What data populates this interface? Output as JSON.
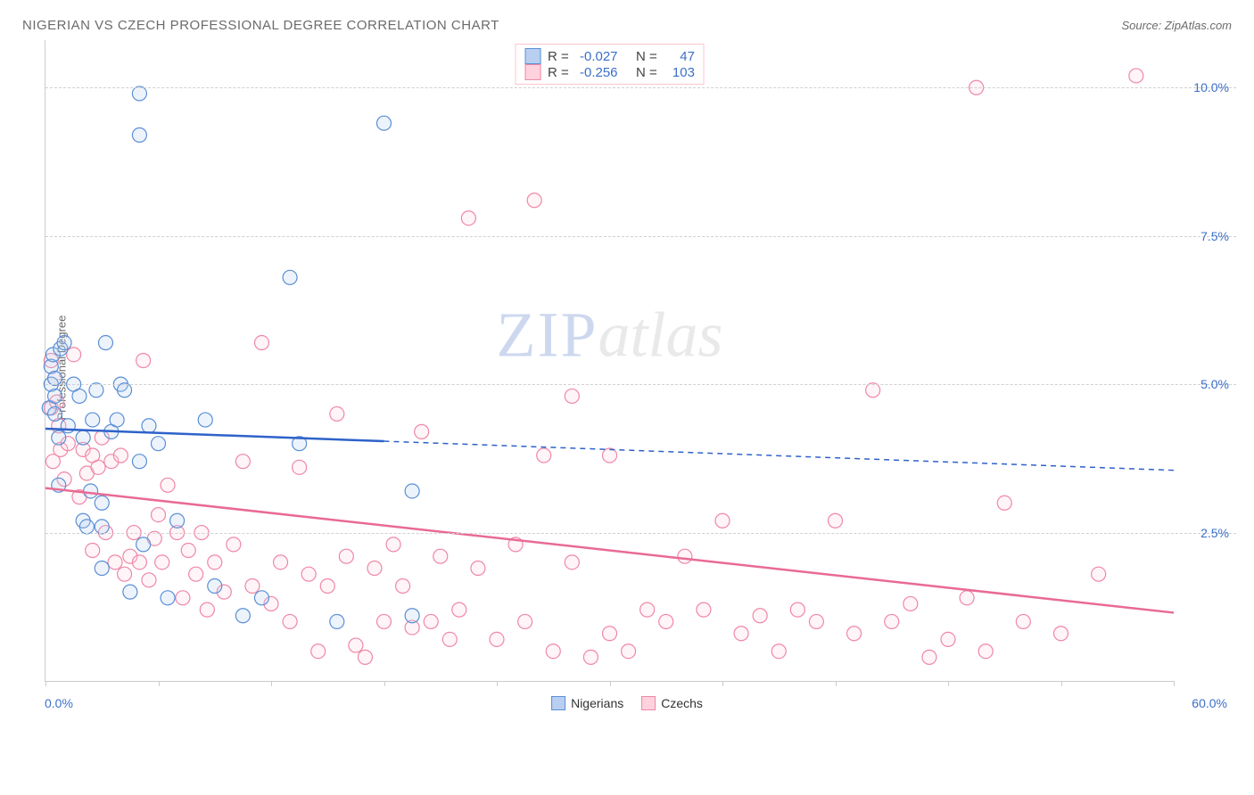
{
  "chart": {
    "type": "scatter",
    "title": "NIGERIAN VS CZECH PROFESSIONAL DEGREE CORRELATION CHART",
    "source": "Source: ZipAtlas.com",
    "y_axis_label": "Professional Degree",
    "watermark": {
      "part1": "ZIP",
      "part2": "atlas"
    },
    "xlim": [
      0,
      60
    ],
    "ylim": [
      0,
      10.8
    ],
    "x_range_labels": {
      "min": "0.0%",
      "max": "60.0%"
    },
    "x_ticks": [
      0,
      6,
      12,
      18,
      24,
      30,
      36,
      42,
      48,
      54,
      60
    ],
    "y_gridlines": [
      {
        "value": 2.5,
        "label": "2.5%"
      },
      {
        "value": 5.0,
        "label": "5.0%"
      },
      {
        "value": 7.5,
        "label": "7.5%"
      },
      {
        "value": 10.0,
        "label": "10.0%"
      }
    ],
    "grid_color": "#d0d0d0",
    "background_color": "#ffffff",
    "marker_radius": 8,
    "marker_stroke_width": 1.2,
    "marker_fill_opacity": 0.25,
    "series": [
      {
        "id": "nigerians",
        "label": "Nigerians",
        "color_fill": "#b9cff1",
        "color_stroke": "#5a8fd6",
        "stats": {
          "R": "-0.027",
          "N": "47"
        },
        "trend": {
          "x1": 0,
          "y1": 4.25,
          "x2": 60,
          "y2": 3.55,
          "solid_until_x": 18,
          "stroke_width": 2.5
        },
        "points": [
          [
            0.2,
            4.6
          ],
          [
            0.3,
            5.0
          ],
          [
            0.3,
            5.3
          ],
          [
            0.4,
            5.5
          ],
          [
            0.5,
            5.1
          ],
          [
            0.5,
            4.8
          ],
          [
            0.5,
            4.5
          ],
          [
            0.7,
            4.1
          ],
          [
            0.7,
            3.3
          ],
          [
            0.8,
            5.6
          ],
          [
            1.0,
            5.7
          ],
          [
            1.2,
            4.3
          ],
          [
            1.5,
            5.0
          ],
          [
            1.8,
            4.8
          ],
          [
            2.0,
            4.1
          ],
          [
            2.0,
            2.7
          ],
          [
            2.2,
            2.6
          ],
          [
            2.4,
            3.2
          ],
          [
            2.5,
            4.4
          ],
          [
            2.7,
            4.9
          ],
          [
            3.0,
            3.0
          ],
          [
            3.0,
            1.9
          ],
          [
            3.0,
            2.6
          ],
          [
            3.2,
            5.7
          ],
          [
            3.5,
            4.2
          ],
          [
            3.8,
            4.4
          ],
          [
            4.0,
            5.0
          ],
          [
            4.2,
            4.9
          ],
          [
            4.5,
            1.5
          ],
          [
            5.0,
            9.9
          ],
          [
            5.0,
            9.2
          ],
          [
            5.0,
            3.7
          ],
          [
            5.2,
            2.3
          ],
          [
            5.5,
            4.3
          ],
          [
            6.0,
            4.0
          ],
          [
            6.5,
            1.4
          ],
          [
            7.0,
            2.7
          ],
          [
            8.5,
            4.4
          ],
          [
            9.0,
            1.6
          ],
          [
            10.5,
            1.1
          ],
          [
            11.5,
            1.4
          ],
          [
            13.0,
            6.8
          ],
          [
            13.5,
            4.0
          ],
          [
            15.5,
            1.0
          ],
          [
            18.0,
            9.4
          ],
          [
            19.5,
            3.2
          ],
          [
            19.5,
            1.1
          ]
        ]
      },
      {
        "id": "czechs",
        "label": "Czechs",
        "color_fill": "#ffd2de",
        "color_stroke": "#ef87a6",
        "stats": {
          "R": "-0.256",
          "N": "103"
        },
        "trend": {
          "x1": 0,
          "y1": 3.25,
          "x2": 60,
          "y2": 1.15,
          "solid_until_x": 60,
          "stroke_width": 2.5
        },
        "points": [
          [
            0.3,
            4.6
          ],
          [
            0.3,
            5.4
          ],
          [
            0.4,
            3.7
          ],
          [
            0.5,
            5.1
          ],
          [
            0.6,
            4.7
          ],
          [
            0.7,
            4.3
          ],
          [
            0.8,
            3.9
          ],
          [
            1.0,
            3.4
          ],
          [
            1.2,
            4.0
          ],
          [
            1.5,
            5.5
          ],
          [
            1.8,
            3.1
          ],
          [
            2.0,
            3.9
          ],
          [
            2.2,
            3.5
          ],
          [
            2.5,
            3.8
          ],
          [
            2.5,
            2.2
          ],
          [
            2.8,
            3.6
          ],
          [
            3.0,
            4.1
          ],
          [
            3.2,
            2.5
          ],
          [
            3.5,
            3.7
          ],
          [
            3.7,
            2.0
          ],
          [
            4.0,
            3.8
          ],
          [
            4.2,
            1.8
          ],
          [
            4.5,
            2.1
          ],
          [
            4.7,
            2.5
          ],
          [
            5.0,
            2.0
          ],
          [
            5.2,
            5.4
          ],
          [
            5.5,
            1.7
          ],
          [
            5.8,
            2.4
          ],
          [
            6.0,
            2.8
          ],
          [
            6.2,
            2.0
          ],
          [
            6.5,
            3.3
          ],
          [
            7.0,
            2.5
          ],
          [
            7.3,
            1.4
          ],
          [
            7.6,
            2.2
          ],
          [
            8.0,
            1.8
          ],
          [
            8.3,
            2.5
          ],
          [
            8.6,
            1.2
          ],
          [
            9.0,
            2.0
          ],
          [
            9.5,
            1.5
          ],
          [
            10.0,
            2.3
          ],
          [
            10.5,
            3.7
          ],
          [
            11.0,
            1.6
          ],
          [
            11.5,
            5.7
          ],
          [
            12.0,
            1.3
          ],
          [
            12.5,
            2.0
          ],
          [
            13.0,
            1.0
          ],
          [
            13.5,
            3.6
          ],
          [
            14.0,
            1.8
          ],
          [
            14.5,
            0.5
          ],
          [
            15.0,
            1.6
          ],
          [
            15.5,
            4.5
          ],
          [
            16.0,
            2.1
          ],
          [
            16.5,
            0.6
          ],
          [
            17.0,
            0.4
          ],
          [
            17.5,
            1.9
          ],
          [
            18.0,
            1.0
          ],
          [
            18.5,
            2.3
          ],
          [
            19.0,
            1.6
          ],
          [
            19.5,
            0.9
          ],
          [
            20.0,
            4.2
          ],
          [
            20.5,
            1.0
          ],
          [
            21.0,
            2.1
          ],
          [
            21.5,
            0.7
          ],
          [
            22.0,
            1.2
          ],
          [
            22.5,
            7.8
          ],
          [
            23.0,
            1.9
          ],
          [
            24.0,
            0.7
          ],
          [
            25.0,
            2.3
          ],
          [
            25.5,
            1.0
          ],
          [
            26.0,
            8.1
          ],
          [
            26.5,
            3.8
          ],
          [
            27.0,
            0.5
          ],
          [
            28.0,
            2.0
          ],
          [
            28.0,
            4.8
          ],
          [
            29.0,
            0.4
          ],
          [
            30.0,
            3.8
          ],
          [
            30.0,
            0.8
          ],
          [
            31.0,
            0.5
          ],
          [
            32.0,
            1.2
          ],
          [
            33.0,
            1.0
          ],
          [
            34.0,
            2.1
          ],
          [
            35.0,
            1.2
          ],
          [
            36.0,
            2.7
          ],
          [
            37.0,
            0.8
          ],
          [
            38.0,
            1.1
          ],
          [
            39.0,
            0.5
          ],
          [
            40.0,
            1.2
          ],
          [
            41.0,
            1.0
          ],
          [
            42.0,
            2.7
          ],
          [
            43.0,
            0.8
          ],
          [
            44.0,
            4.9
          ],
          [
            45.0,
            1.0
          ],
          [
            46.0,
            1.3
          ],
          [
            47.0,
            0.4
          ],
          [
            48.0,
            0.7
          ],
          [
            49.0,
            1.4
          ],
          [
            50.0,
            0.5
          ],
          [
            51.0,
            3.0
          ],
          [
            52.0,
            1.0
          ],
          [
            54.0,
            0.8
          ],
          [
            56.0,
            1.8
          ],
          [
            58.0,
            10.2
          ],
          [
            49.5,
            10.0
          ]
        ]
      }
    ],
    "bottom_legend": [
      {
        "label": "Nigerians",
        "fill": "#b9cff1",
        "stroke": "#5a8fd6"
      },
      {
        "label": "Czechs",
        "fill": "#ffd2de",
        "stroke": "#ef87a6"
      }
    ]
  }
}
